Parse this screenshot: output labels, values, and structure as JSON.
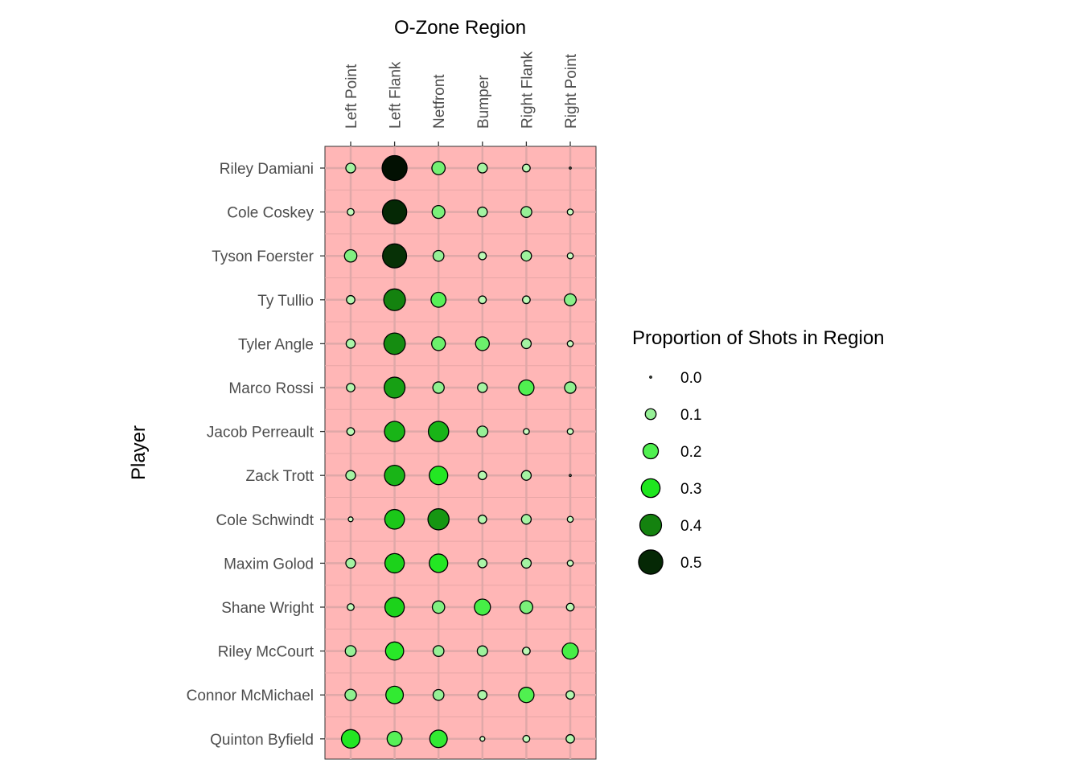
{
  "chart_data": {
    "type": "scatter",
    "subtype": "bubble-grid",
    "title": "",
    "xlabel": "O-Zone Region",
    "xaxis_position": "top",
    "ylabel": "Player",
    "columns": [
      "Left Point",
      "Left Flank",
      "Netfront",
      "Bumper",
      "Right Flank",
      "Right Point"
    ],
    "rows": [
      "Riley Damiani",
      "Cole Coskey",
      "Tyson Foerster",
      "Ty Tullio",
      "Tyler Angle",
      "Marco Rossi",
      "Jacob Perreault",
      "Zack Trott",
      "Cole Schwindt",
      "Maxim Golod",
      "Shane Wright",
      "Riley McCourt",
      "Connor McMichael",
      "Quinton Byfield"
    ],
    "values": [
      [
        0.08,
        0.53,
        0.15,
        0.08,
        0.05,
        0.0
      ],
      [
        0.04,
        0.5,
        0.14,
        0.08,
        0.1,
        0.03
      ],
      [
        0.13,
        0.49,
        0.1,
        0.05,
        0.09,
        0.03
      ],
      [
        0.06,
        0.4,
        0.19,
        0.05,
        0.05,
        0.12
      ],
      [
        0.07,
        0.39,
        0.16,
        0.16,
        0.08,
        0.03
      ],
      [
        0.06,
        0.37,
        0.11,
        0.08,
        0.2,
        0.11
      ],
      [
        0.05,
        0.35,
        0.35,
        0.1,
        0.03,
        0.03
      ],
      [
        0.08,
        0.35,
        0.29,
        0.06,
        0.08,
        0.0
      ],
      [
        0.02,
        0.33,
        0.38,
        0.06,
        0.08,
        0.03
      ],
      [
        0.08,
        0.32,
        0.29,
        0.07,
        0.08,
        0.03
      ],
      [
        0.04,
        0.32,
        0.13,
        0.22,
        0.14,
        0.05
      ],
      [
        0.1,
        0.28,
        0.1,
        0.09,
        0.05,
        0.22
      ],
      [
        0.11,
        0.26,
        0.1,
        0.07,
        0.2,
        0.06
      ],
      [
        0.29,
        0.19,
        0.26,
        0.02,
        0.04,
        0.06
      ]
    ],
    "legend": {
      "title": "Proportion of Shots in Region",
      "position": "right",
      "breaks": [
        0.0,
        0.1,
        0.2,
        0.3,
        0.4,
        0.5
      ],
      "labels": [
        "0.0",
        "0.1",
        "0.2",
        "0.3",
        "0.4",
        "0.5"
      ]
    },
    "size_range": [
      0,
      0.53
    ],
    "fill_scale": "light green to black by proportion",
    "panel_background": "#ffb6b6",
    "grid": true
  }
}
